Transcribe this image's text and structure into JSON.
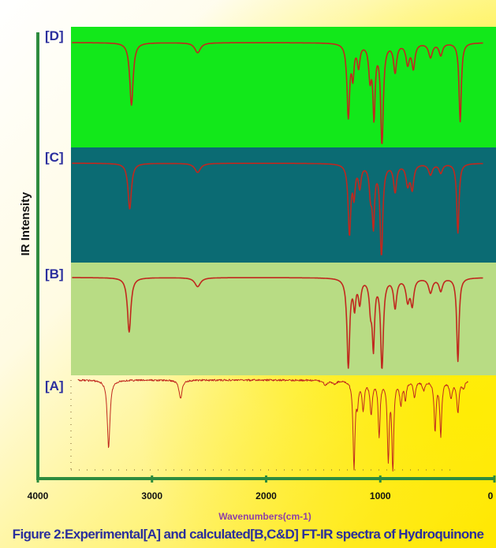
{
  "caption": "Figure 2:Experimental[A] and calculated[B,C&D] FT-IR spectra of Hydroquinone",
  "chart_data": {
    "type": "line",
    "xlabel": "Wavenumbers(cm-1)",
    "ylabel": "IR Intensity",
    "xlim": [
      4000,
      0
    ],
    "x_ticks": [
      "4000",
      "3000",
      "2000",
      "1000",
      "0"
    ],
    "colors": {
      "axis": "#2e8b3e",
      "line": "#c0281e",
      "panel_D": "#12e81a",
      "panel_C": "#0b6b73",
      "panel_B": "#b8dc84"
    },
    "series": [
      {
        "name": "[D]",
        "baseline": 0.92,
        "peaks": [
          [
            3180,
            0.62,
            18
          ],
          [
            2600,
            0.1,
            30
          ],
          [
            1280,
            0.72,
            14
          ],
          [
            1240,
            0.3,
            12
          ],
          [
            1190,
            0.22,
            14
          ],
          [
            1090,
            0.32,
            14
          ],
          [
            1055,
            0.7,
            12
          ],
          [
            985,
            1.0,
            14
          ],
          [
            870,
            0.28,
            16
          ],
          [
            760,
            0.2,
            18
          ],
          [
            710,
            0.24,
            16
          ],
          [
            560,
            0.14,
            20
          ],
          [
            470,
            0.12,
            18
          ],
          [
            300,
            0.78,
            12
          ]
        ]
      },
      {
        "name": "[C]",
        "baseline": 0.92,
        "peaks": [
          [
            3195,
            0.5,
            18
          ],
          [
            2600,
            0.1,
            30
          ],
          [
            1270,
            0.76,
            14
          ],
          [
            1230,
            0.32,
            12
          ],
          [
            1180,
            0.24,
            14
          ],
          [
            1085,
            0.3,
            14
          ],
          [
            1060,
            0.62,
            12
          ],
          [
            990,
            1.0,
            14
          ],
          [
            870,
            0.3,
            16
          ],
          [
            760,
            0.22,
            18
          ],
          [
            720,
            0.26,
            16
          ],
          [
            560,
            0.12,
            20
          ],
          [
            470,
            0.1,
            18
          ],
          [
            320,
            0.76,
            12
          ]
        ]
      },
      {
        "name": "[B]",
        "baseline": 0.92,
        "peaks": [
          [
            3200,
            0.6,
            18
          ],
          [
            2600,
            0.1,
            30
          ],
          [
            1280,
            0.98,
            14
          ],
          [
            1225,
            0.3,
            12
          ],
          [
            1180,
            0.26,
            14
          ],
          [
            1085,
            0.3,
            14
          ],
          [
            1060,
            0.72,
            12
          ],
          [
            985,
            1.0,
            14
          ],
          [
            870,
            0.32,
            16
          ],
          [
            760,
            0.24,
            18
          ],
          [
            720,
            0.28,
            16
          ],
          [
            560,
            0.16,
            20
          ],
          [
            470,
            0.14,
            18
          ],
          [
            320,
            0.92,
            12
          ]
        ]
      },
      {
        "name": "[A]",
        "baseline": 0.95,
        "peaks": [
          [
            3380,
            0.75,
            14
          ],
          [
            2750,
            0.2,
            16
          ],
          [
            1480,
            0.05,
            20
          ],
          [
            1400,
            0.04,
            18
          ],
          [
            1230,
            0.98,
            10
          ],
          [
            1200,
            0.22,
            10
          ],
          [
            1150,
            0.3,
            12
          ],
          [
            1080,
            0.36,
            12
          ],
          [
            1010,
            0.6,
            10
          ],
          [
            930,
            0.85,
            10
          ],
          [
            890,
            1.0,
            9
          ],
          [
            820,
            0.25,
            12
          ],
          [
            780,
            0.2,
            10
          ],
          [
            700,
            0.18,
            12
          ],
          [
            620,
            0.1,
            14
          ],
          [
            520,
            0.55,
            10
          ],
          [
            470,
            0.6,
            10
          ],
          [
            380,
            0.18,
            14
          ],
          [
            320,
            0.35,
            12
          ],
          [
            270,
            0.08,
            12
          ]
        ]
      }
    ]
  }
}
